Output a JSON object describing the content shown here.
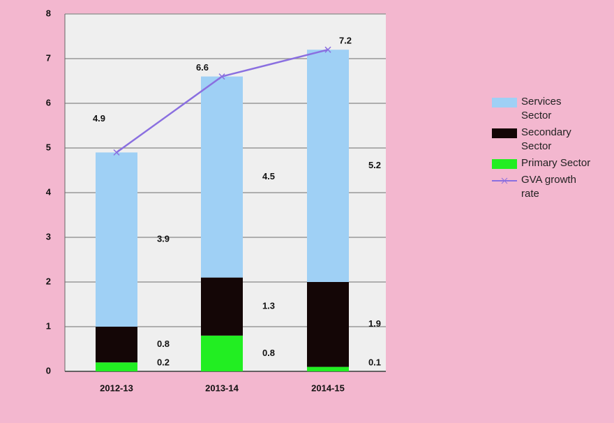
{
  "chart_data": {
    "type": "stacked_bar_line",
    "categories": [
      "2012-13",
      "2013-14",
      "2014-15"
    ],
    "series": [
      {
        "name": "Services Sector",
        "color": "#9fd0f5",
        "values": [
          3.9,
          4.5,
          5.2
        ]
      },
      {
        "name": "Secondary Sector",
        "color": "#140606",
        "values": [
          0.8,
          1.3,
          1.9
        ]
      },
      {
        "name": "Primary Sector",
        "color": "#22ee22",
        "values": [
          0.2,
          0.8,
          0.1
        ]
      },
      {
        "name": "GVA growth rate",
        "color": "#8a6fe0",
        "type": "line",
        "values": [
          4.9,
          6.6,
          7.2
        ]
      }
    ],
    "ylim": [
      0,
      8
    ],
    "yticks": [
      0,
      1,
      2,
      3,
      4,
      5,
      6,
      7,
      8
    ],
    "grid": true,
    "legend": "right"
  }
}
